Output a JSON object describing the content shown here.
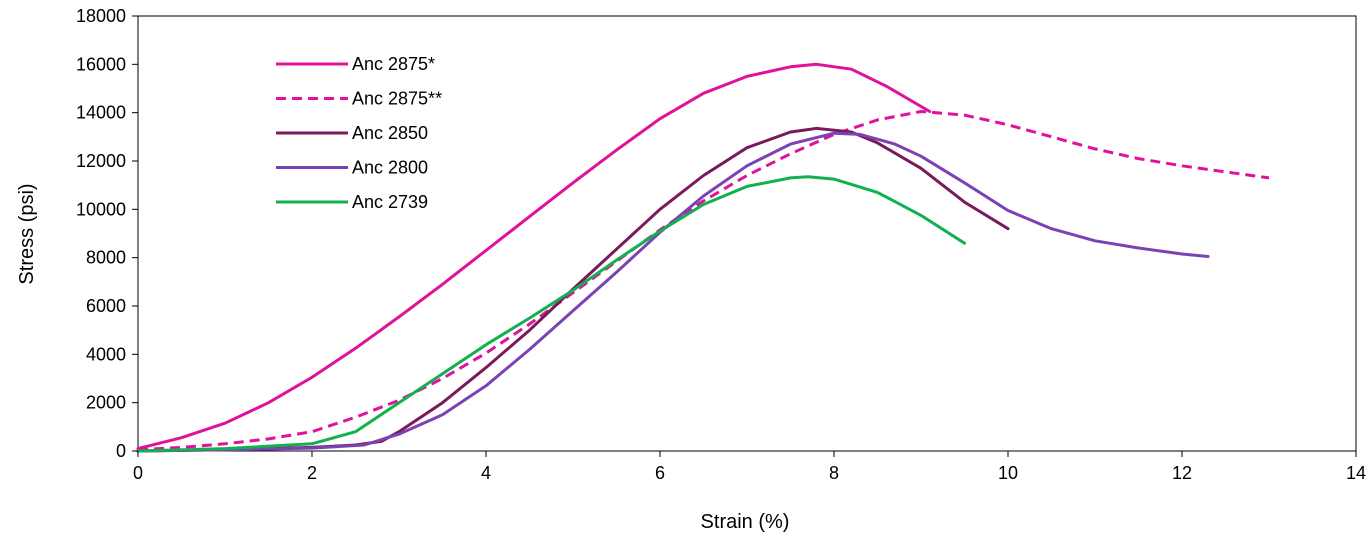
{
  "chart_data": {
    "type": "line",
    "xlabel": "Strain (%)",
    "ylabel": "Stress (psi)",
    "xlim": [
      0,
      14
    ],
    "ylim": [
      0,
      18000
    ],
    "x_ticks": [
      "0",
      "2",
      "4",
      "6",
      "8",
      "10",
      "12",
      "14"
    ],
    "y_ticks": [
      "0",
      "2000",
      "4000",
      "6000",
      "8000",
      "10000",
      "12000",
      "14000",
      "16000",
      "18000"
    ],
    "grid": false,
    "legend_position": "top-left",
    "series": [
      {
        "name": "Anc 2875*",
        "color": "#e0119a",
        "dash": "solid",
        "x": [
          0,
          0.5,
          1,
          1.5,
          2,
          2.5,
          3,
          3.5,
          4,
          4.5,
          5,
          5.5,
          6,
          6.5,
          7,
          7.5,
          7.8,
          8.2,
          8.6,
          9.1
        ],
        "y": [
          100,
          550,
          1150,
          2000,
          3050,
          4250,
          5550,
          6900,
          8300,
          9700,
          11100,
          12450,
          13750,
          14800,
          15500,
          15900,
          16000,
          15800,
          15100,
          14050
        ]
      },
      {
        "name": "Anc 2875**",
        "color": "#e0119a",
        "dash": "dashed",
        "x": [
          0,
          0.5,
          1,
          1.5,
          2,
          2.5,
          3,
          3.5,
          4,
          4.5,
          5,
          5.5,
          6,
          6.5,
          7,
          7.5,
          8,
          8.5,
          9,
          9.5,
          10,
          10.5,
          11,
          11.5,
          12,
          12.5,
          13
        ],
        "y": [
          50,
          150,
          300,
          500,
          800,
          1400,
          2100,
          3000,
          4050,
          5250,
          6550,
          7850,
          9150,
          10350,
          11400,
          12300,
          13100,
          13700,
          14050,
          13900,
          13500,
          13000,
          12500,
          12100,
          11800,
          11550,
          11300
        ]
      },
      {
        "name": "Anc 2850",
        "color": "#7a1a5a",
        "dash": "solid",
        "x": [
          0,
          1,
          2,
          2.5,
          2.8,
          3,
          3.5,
          4,
          4.5,
          5,
          5.5,
          6,
          6.5,
          7,
          7.5,
          7.8,
          8.2,
          8.5,
          9,
          9.5,
          10
        ],
        "y": [
          0,
          50,
          150,
          250,
          400,
          800,
          2000,
          3450,
          5000,
          6700,
          8350,
          10000,
          11400,
          12550,
          13200,
          13350,
          13200,
          12750,
          11700,
          10300,
          9200
        ]
      },
      {
        "name": "Anc 2800",
        "color": "#7b42b5",
        "dash": "solid",
        "x": [
          0,
          1,
          2,
          2.6,
          3,
          3.5,
          4,
          4.5,
          5,
          5.5,
          6,
          6.5,
          7,
          7.5,
          8,
          8.3,
          8.7,
          9,
          9.5,
          10,
          10.5,
          11,
          11.5,
          12,
          12.3
        ],
        "y": [
          0,
          50,
          120,
          250,
          700,
          1500,
          2700,
          4200,
          5800,
          7400,
          9050,
          10550,
          11800,
          12700,
          13150,
          13100,
          12700,
          12200,
          11100,
          9950,
          9200,
          8700,
          8400,
          8150,
          8050
        ]
      },
      {
        "name": "Anc 2739",
        "color": "#12b04e",
        "dash": "solid",
        "x": [
          0,
          1,
          2,
          2.5,
          3,
          3.5,
          4,
          4.5,
          5,
          5.5,
          6,
          6.5,
          7,
          7.5,
          7.7,
          8,
          8.5,
          9,
          9.5
        ],
        "y": [
          0,
          100,
          300,
          800,
          2000,
          3200,
          4400,
          5500,
          6650,
          7900,
          9100,
          10200,
          10950,
          11300,
          11350,
          11250,
          10700,
          9750,
          8600
        ]
      }
    ]
  }
}
